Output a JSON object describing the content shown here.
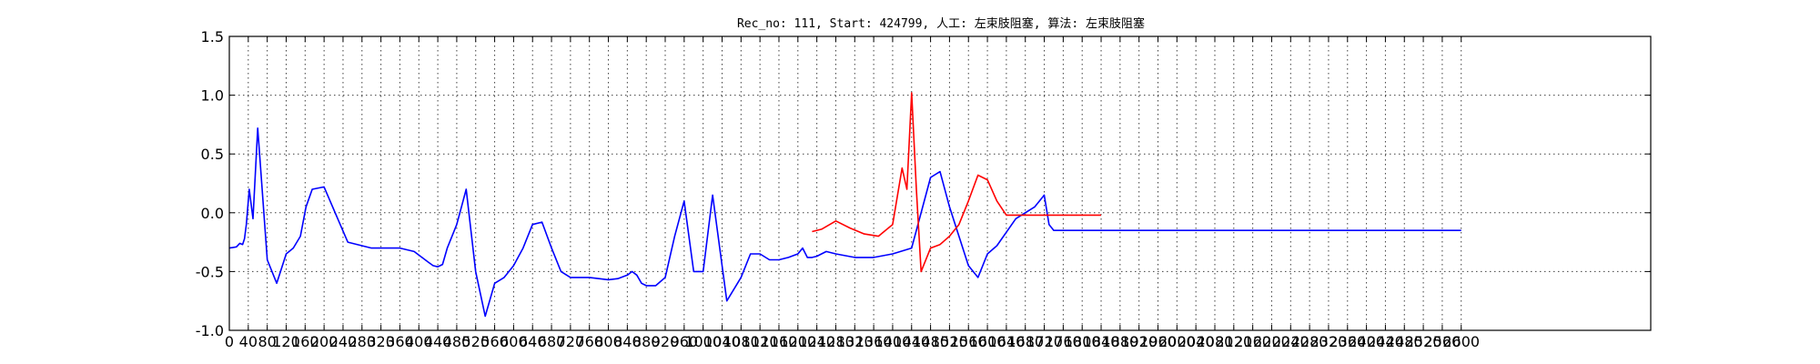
{
  "chart_data": {
    "type": "line",
    "title": "Rec_no: 111, Start: 424799, 人工: 左束肢阻塞, 算法: 左束肢阻塞",
    "xlabel": "",
    "ylabel": "",
    "xlim": [
      0,
      3000
    ],
    "ylim": [
      -1.0,
      1.5
    ],
    "grid": true,
    "y_ticks": [
      1.5,
      1.0,
      0.5,
      0.0,
      -0.5,
      -1.0
    ],
    "y_tick_labels": [
      "1.5",
      "1.0",
      "0.5",
      "0.0",
      "-0.5",
      "-1.0"
    ],
    "x_tick_step": 40,
    "x_tick_labels": [
      "0",
      "40",
      "80",
      "120",
      "160",
      "200",
      "240",
      "280",
      "320",
      "360",
      "400",
      "440",
      "480",
      "520",
      "560",
      "600",
      "640",
      "680",
      "720",
      "760",
      "800",
      "840",
      "880",
      "920",
      "960",
      "1000",
      "1040",
      "1080",
      "1120",
      "1160",
      "1200",
      "1240",
      "1280",
      "1320",
      "1360",
      "1400",
      "1440",
      "1480",
      "1520",
      "1560",
      "1600",
      "1640",
      "1680",
      "1720",
      "1760",
      "1800",
      "1840",
      "1880",
      "1920",
      "1960",
      "2000",
      "2040",
      "2080",
      "2120",
      "2160",
      "2200",
      "2240",
      "2280",
      "2320",
      "2360",
      "2400",
      "2440",
      "2480",
      "2520",
      "2560",
      "2600"
    ],
    "series": [
      {
        "color": "#0000ff",
        "x": [
          0,
          15,
          22,
          28,
          32,
          36,
          42,
          50,
          60,
          80,
          100,
          120,
          135,
          150,
          162,
          175,
          200,
          250,
          300,
          330,
          360,
          390,
          420,
          430,
          440,
          445,
          450,
          460,
          480,
          500,
          520,
          540,
          560,
          580,
          600,
          620,
          640,
          660,
          680,
          700,
          720,
          740,
          760,
          800,
          820,
          840,
          850,
          860,
          870,
          880,
          900,
          920,
          940,
          960,
          980,
          1000,
          1020,
          1050,
          1080,
          1100,
          1120,
          1140,
          1160,
          1180,
          1200,
          1210,
          1220,
          1230,
          1240,
          1250,
          1260,
          1280,
          1320,
          1360,
          1400,
          1440,
          1480,
          1500,
          1520,
          1560,
          1580,
          1600,
          1620,
          1660,
          1700,
          1720,
          1730,
          1740,
          1750,
          1755,
          1760,
          1770,
          1780,
          1800,
          1820,
          1840,
          1860,
          1880,
          1900,
          1920,
          1940,
          1960,
          1980,
          2000,
          2020,
          2040,
          2060,
          2080,
          2100,
          2120,
          2140,
          2170,
          2200,
          2250,
          2300,
          2350,
          2400,
          2420,
          2440,
          2460,
          2470,
          2480,
          2490,
          2500,
          2520,
          2540,
          2560,
          2580,
          2600
        ],
        "y": [
          -0.3,
          -0.29,
          -0.26,
          -0.27,
          -0.22,
          -0.1,
          0.2,
          -0.05,
          0.72,
          -0.4,
          -0.6,
          -0.35,
          -0.3,
          -0.2,
          0.05,
          0.2,
          0.22,
          -0.25,
          -0.3,
          -0.3,
          -0.3,
          -0.33,
          -0.42,
          -0.45,
          -0.46,
          -0.45,
          -0.44,
          -0.3,
          -0.1,
          0.2,
          -0.5,
          -0.88,
          -0.6,
          -0.55,
          -0.45,
          -0.3,
          -0.1,
          -0.08,
          -0.3,
          -0.5,
          -0.55,
          -0.55,
          -0.55,
          -0.57,
          -0.56,
          -0.53,
          -0.5,
          -0.53,
          -0.6,
          -0.62,
          -0.62,
          -0.55,
          -0.2,
          0.1,
          -0.5,
          -0.5,
          0.15,
          -0.75,
          -0.55,
          -0.35,
          -0.35,
          -0.4,
          -0.4,
          -0.38,
          -0.35,
          -0.3,
          -0.38,
          -0.38,
          -0.37,
          -0.35,
          -0.33,
          -0.35,
          -0.38,
          -0.38,
          -0.35,
          -0.3,
          0.3,
          0.35,
          0.05,
          -0.45,
          -0.55,
          -0.35,
          -0.28,
          -0.05,
          0.05,
          0.15,
          -0.1,
          -0.15,
          -0.15,
          -0.15,
          -0.15,
          -0.15,
          -0.15,
          -0.15,
          -0.15,
          -0.15,
          -0.15,
          -0.15,
          -0.15,
          -0.15,
          -0.15,
          -0.15,
          -0.15,
          -0.15,
          -0.15,
          -0.15,
          -0.15,
          -0.15,
          -0.15,
          -0.15,
          -0.15,
          -0.15,
          -0.15,
          -0.15,
          -0.15,
          -0.15,
          -0.15,
          -0.15,
          -0.15,
          -0.15,
          -0.15,
          -0.15,
          -0.15,
          -0.15,
          -0.15,
          -0.15,
          -0.15,
          -0.15,
          -0.15
        ]
      },
      {
        "color": "#ff0000",
        "x": [
          1230,
          1250,
          1280,
          1310,
          1340,
          1370,
          1400,
          1420,
          1430,
          1440,
          1450,
          1460,
          1480,
          1500,
          1520,
          1540,
          1560,
          1580,
          1600,
          1620,
          1640,
          1660,
          1680,
          1700,
          1720,
          1740,
          1760,
          1780,
          1800,
          1820,
          1840
        ],
        "y": [
          -0.16,
          -0.14,
          -0.07,
          -0.13,
          -0.18,
          -0.2,
          -0.1,
          0.38,
          0.2,
          1.02,
          0.2,
          -0.5,
          -0.3,
          -0.27,
          -0.2,
          -0.1,
          0.1,
          0.32,
          0.28,
          0.1,
          -0.02,
          -0.02,
          -0.02,
          -0.02,
          -0.02,
          -0.02,
          -0.02,
          -0.02,
          -0.02,
          -0.02,
          -0.02
        ]
      }
    ]
  }
}
